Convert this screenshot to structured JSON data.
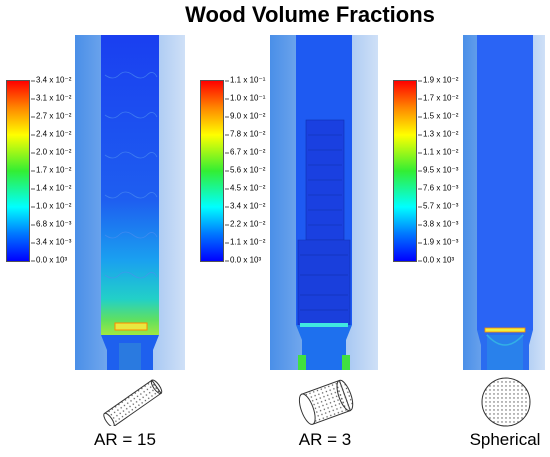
{
  "title": "Wood Volume Fractions",
  "colorbars": [
    {
      "name": "ar15",
      "labels": [
        "3.4 x 10⁻²",
        "3.1 x 10⁻²",
        "2.7 x 10⁻²",
        "2.4 x 10⁻²",
        "2.0 x 10⁻²",
        "1.7 x 10⁻²",
        "1.4 x 10⁻²",
        "1.0 x 10⁻²",
        "6.8 x 10⁻³",
        "3.4 x 10⁻³",
        "0.0 x 10³"
      ]
    },
    {
      "name": "ar3",
      "labels": [
        "1.1 x 10⁻¹",
        "1.0 x 10⁻¹",
        "9.0 x 10⁻²",
        "7.8 x 10⁻²",
        "6.7 x 10⁻²",
        "5.6 x 10⁻²",
        "4.5 x 10⁻²",
        "3.4 x 10⁻²",
        "2.2 x 10⁻²",
        "1.1 x 10⁻²",
        "0.0 x 10³"
      ]
    },
    {
      "name": "spherical",
      "labels": [
        "1.9 x 10⁻²",
        "1.7 x 10⁻²",
        "1.5 x 10⁻²",
        "1.3 x 10⁻²",
        "1.1 x 10⁻²",
        "9.5 x 10⁻³",
        "7.6 x 10⁻³",
        "5.7 x 10⁻³",
        "3.8 x 10⁻³",
        "1.9 x 10⁻³",
        "0.0 x 10³"
      ]
    }
  ],
  "captions": [
    "AR = 15",
    "AR = 3",
    "Spherical"
  ],
  "colors": {
    "red": "#e41a1c",
    "yellow": "#ffff00",
    "green": "#22dd22",
    "cyan": "#00ffff",
    "blue": "#0000ff",
    "domain": "#1a4cf0"
  }
}
